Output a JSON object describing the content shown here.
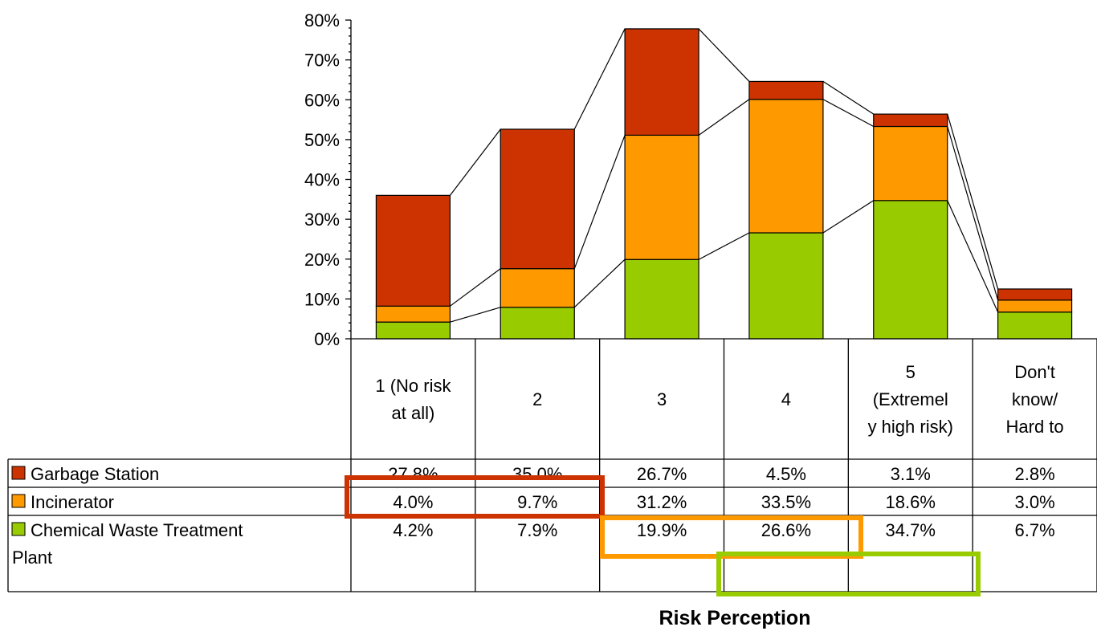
{
  "chart_data": {
    "type": "bar",
    "stacked": true,
    "ylim": [
      0,
      80
    ],
    "yticks": [
      "0%",
      "10%",
      "20%",
      "30%",
      "40%",
      "50%",
      "60%",
      "70%",
      "80%"
    ],
    "categories": [
      [
        "1 (No risk",
        "at all)"
      ],
      [
        "2"
      ],
      [
        "3"
      ],
      [
        "4"
      ],
      [
        "5",
        "(Extremel",
        "y high risk)"
      ],
      [
        "Don't",
        "know/",
        "Hard to"
      ]
    ],
    "series": [
      {
        "name": "Chemical Waste Treatment Plant",
        "name_lines": [
          "Chemical Waste Treatment",
          "Plant"
        ],
        "color": "#99cc00",
        "values": [
          4.2,
          7.9,
          19.9,
          26.6,
          34.7,
          6.7
        ],
        "labels": [
          "4.2%",
          "7.9%",
          "19.9%",
          "26.6%",
          "34.7%",
          "6.7%"
        ]
      },
      {
        "name": "Incinerator",
        "name_lines": [
          "Incinerator"
        ],
        "color": "#ff9900",
        "values": [
          4.0,
          9.7,
          31.2,
          33.5,
          18.6,
          3.0
        ],
        "labels": [
          "4.0%",
          "9.7%",
          "31.2%",
          "33.5%",
          "18.6%",
          "3.0%"
        ]
      },
      {
        "name": "Garbage Station",
        "name_lines": [
          "Garbage Station"
        ],
        "color": "#cc3300",
        "values": [
          27.8,
          35.0,
          26.7,
          4.5,
          3.1,
          2.8
        ],
        "labels": [
          "27.8%",
          "35.0%",
          "26.7%",
          "4.5%",
          "3.1%",
          "2.8%"
        ]
      }
    ],
    "table_order": [
      2,
      1,
      0
    ],
    "xlabel": "Risk Perception",
    "series_lines": true,
    "legend": "data-table",
    "highlight_boxes": [
      {
        "color": "#cc3300",
        "series": "Incinerator",
        "categories": [
          "1 (No risk at all)",
          "2"
        ]
      },
      {
        "color": "#ff9900",
        "series": "Chemical Waste Treatment Plant",
        "categories": [
          "3",
          "4"
        ]
      },
      {
        "color": "#99cc00",
        "series": "Chemical Waste Treatment Plant",
        "categories": [
          "4",
          "5 (Extremely high risk)"
        ]
      }
    ]
  }
}
